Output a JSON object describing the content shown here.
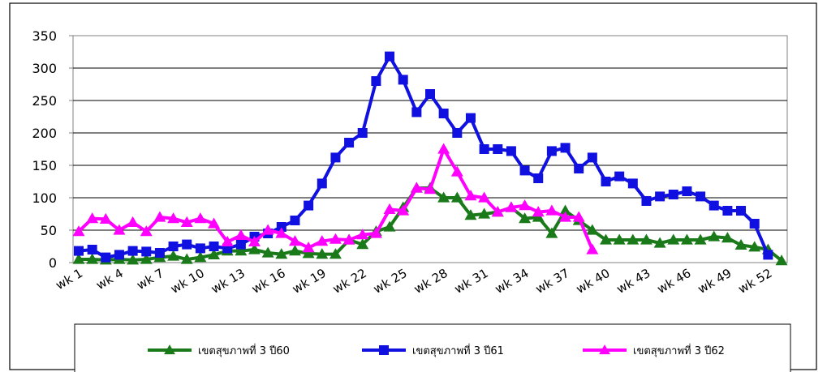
{
  "chart_data": {
    "type": "line",
    "title": "",
    "xlabel": "",
    "ylabel": "",
    "ylim": [
      0,
      350
    ],
    "yticks": [
      0,
      50,
      100,
      150,
      200,
      250,
      300,
      350
    ],
    "grid": true,
    "legend_position": "bottom",
    "categories": [
      "wk 1",
      "wk 2",
      "wk 3",
      "wk 4",
      "wk 5",
      "wk 6",
      "wk 7",
      "wk 8",
      "wk 9",
      "wk 10",
      "wk 11",
      "wk 12",
      "wk 13",
      "wk 14",
      "wk 15",
      "wk 16",
      "wk 17",
      "wk 18",
      "wk 19",
      "wk 20",
      "wk 21",
      "wk 22",
      "wk 23",
      "wk 24",
      "wk 25",
      "wk 26",
      "wk 27",
      "wk 28",
      "wk 29",
      "wk 30",
      "wk 31",
      "wk 32",
      "wk 33",
      "wk 34",
      "wk 35",
      "wk 36",
      "wk 37",
      "wk 38",
      "wk 39",
      "wk 40",
      "wk 41",
      "wk 42",
      "wk 43",
      "wk 44",
      "wk 45",
      "wk 46",
      "wk 47",
      "wk 48",
      "wk 49",
      "wk 50",
      "wk 51",
      "wk 52",
      "wk 53"
    ],
    "tick_labels": [
      "wk 1",
      "wk 4",
      "wk 7",
      "wk 10",
      "wk 13",
      "wk 16",
      "wk 19",
      "wk 22",
      "wk 25",
      "wk 28",
      "wk 31",
      "wk 34",
      "wk 37",
      "wk 40",
      "wk 43",
      "wk 46",
      "wk 49",
      "wk 52"
    ],
    "tick_label_indices": [
      0,
      3,
      6,
      9,
      12,
      15,
      18,
      21,
      24,
      27,
      30,
      33,
      36,
      39,
      42,
      45,
      48,
      51
    ],
    "series": [
      {
        "name": "เขตสุขภาพที่ 3 ปี60",
        "color": "#1a7a1a",
        "marker": "triangle",
        "values": [
          5,
          5,
          4,
          5,
          4,
          5,
          8,
          10,
          5,
          8,
          12,
          18,
          18,
          20,
          15,
          13,
          18,
          14,
          13,
          13,
          35,
          28,
          48,
          55,
          85,
          115,
          115,
          100,
          100,
          73,
          75,
          78,
          85,
          68,
          70,
          45,
          80,
          65,
          50,
          35,
          35,
          35,
          35,
          30,
          35,
          35,
          35,
          40,
          38,
          27,
          24,
          20,
          3
        ]
      },
      {
        "name": "เขตสุขภาพที่ 3 ปี61",
        "color": "#1010e0",
        "marker": "square",
        "values": [
          18,
          20,
          8,
          12,
          18,
          17,
          15,
          25,
          28,
          22,
          25,
          22,
          28,
          40,
          45,
          55,
          65,
          88,
          122,
          162,
          185,
          200,
          280,
          318,
          282,
          232,
          260,
          230,
          200,
          223,
          175,
          175,
          172,
          142,
          130,
          172,
          177,
          145,
          162,
          125,
          133,
          122,
          95,
          102,
          105,
          110,
          102,
          88,
          80,
          80,
          60,
          12,
          null
        ]
      },
      {
        "name": "เขตสุขภาพที่ 3 ปี62",
        "color": "#ff00ff",
        "marker": "triangle",
        "values": [
          48,
          68,
          67,
          50,
          62,
          48,
          70,
          68,
          62,
          68,
          60,
          32,
          42,
          32,
          50,
          45,
          33,
          23,
          33,
          36,
          35,
          43,
          45,
          82,
          80,
          115,
          113,
          175,
          140,
          103,
          100,
          78,
          85,
          88,
          78,
          80,
          70,
          70,
          20,
          null,
          null,
          null,
          null,
          null,
          null,
          null,
          null,
          null,
          null,
          null,
          null,
          null,
          null
        ]
      }
    ]
  }
}
